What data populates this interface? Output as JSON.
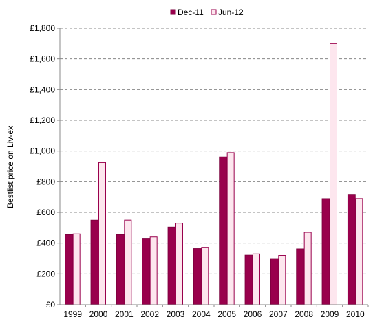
{
  "chart_data": {
    "type": "bar",
    "ylabel": "Bestlist price on Liv-ex",
    "ylim": [
      0,
      1800
    ],
    "grid": "horizontal dashed",
    "legend_position": "top",
    "categories": [
      "1999",
      "2000",
      "2001",
      "2002",
      "2003",
      "2004",
      "2005",
      "2006",
      "2007",
      "2008",
      "2009",
      "2010"
    ],
    "y_ticks": [
      0,
      200,
      400,
      600,
      800,
      1000,
      1200,
      1400,
      1600,
      1800
    ],
    "y_tick_labels": [
      "£0",
      "£200",
      "£400",
      "£600",
      "£800",
      "£1,000",
      "£1,200",
      "£1,400",
      "£1,600",
      "£1,800"
    ],
    "series": [
      {
        "name": "Dec-11",
        "color": "#99004c",
        "edge": "#7a003c",
        "values": [
          455,
          550,
          455,
          432,
          505,
          365,
          962,
          322,
          300,
          363,
          690,
          718
        ]
      },
      {
        "name": "Jun-12",
        "color": "#fde6ee",
        "edge": "#99004c",
        "values": [
          460,
          925,
          550,
          440,
          530,
          373,
          990,
          330,
          320,
          470,
          1700,
          690
        ]
      }
    ]
  }
}
